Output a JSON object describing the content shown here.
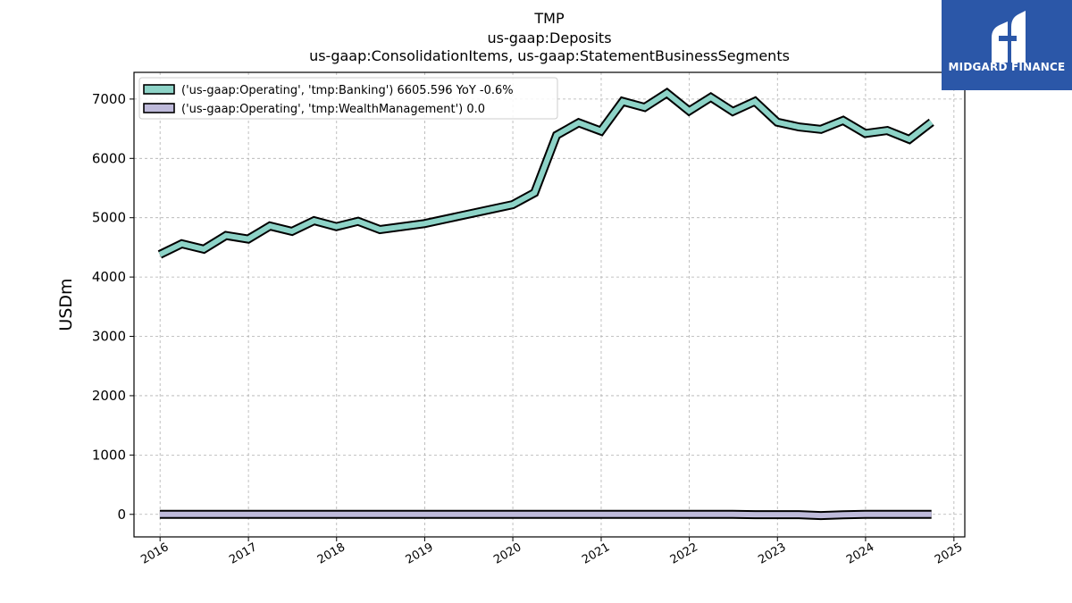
{
  "brand": {
    "name": "MIDGARD FINANCE",
    "bg_color": "#2b57a8",
    "icon": "midgard-logo-icon"
  },
  "chart_data": {
    "type": "line",
    "title_lines": [
      "TMP",
      "us-gaap:Deposits",
      "us-gaap:ConsolidationItems, us-gaap:StatementBusinessSegments"
    ],
    "xlabel": "",
    "ylabel": "USDm",
    "xlim": [
      "2015-09-15",
      "2025-02-15"
    ],
    "ylim": [
      -380,
      7450
    ],
    "yticks": [
      0,
      1000,
      2000,
      3000,
      4000,
      5000,
      6000,
      7000
    ],
    "ytick_labels": [
      "0",
      "1000",
      "2000",
      "3000",
      "4000",
      "5000",
      "6000",
      "7000"
    ],
    "xticks": [
      "2016-01-01",
      "2017-01-01",
      "2018-01-01",
      "2019-01-01",
      "2020-01-01",
      "2021-01-01",
      "2022-01-01",
      "2023-01-01",
      "2024-01-01",
      "2025-01-01"
    ],
    "xtick_labels": [
      "2016",
      "2017",
      "2018",
      "2019",
      "2020",
      "2021",
      "2022",
      "2023",
      "2024",
      "2025"
    ],
    "grid": true,
    "legend_position": "top-left",
    "series": [
      {
        "name": "('us-gaap:Operating', 'tmp:Banking') 6605.596 YoY -0.6%",
        "color": "#8dd3c7",
        "x": [
          "2015-12-31",
          "2016-03-31",
          "2016-06-30",
          "2016-09-30",
          "2016-12-31",
          "2017-03-31",
          "2017-06-30",
          "2017-09-30",
          "2017-12-31",
          "2018-03-31",
          "2018-06-30",
          "2018-12-31",
          "2019-12-31",
          "2020-03-31",
          "2020-06-30",
          "2020-09-30",
          "2020-12-31",
          "2021-03-31",
          "2021-06-30",
          "2021-09-30",
          "2021-12-31",
          "2022-03-31",
          "2022-06-30",
          "2022-09-30",
          "2022-12-31",
          "2023-03-31",
          "2023-06-30",
          "2023-09-30",
          "2023-12-31",
          "2024-03-31",
          "2024-06-30",
          "2024-09-30"
        ],
        "values": [
          4380,
          4560,
          4470,
          4700,
          4640,
          4860,
          4770,
          4950,
          4850,
          4940,
          4800,
          4900,
          5220,
          5420,
          6390,
          6600,
          6460,
          6960,
          6860,
          7100,
          6800,
          7030,
          6790,
          6960,
          6610,
          6530,
          6490,
          6640,
          6420,
          6470,
          6320,
          6610
        ]
      },
      {
        "name": "('us-gaap:Operating', 'tmp:WealthManagement') 0.0",
        "color": "#bebada",
        "x": [
          "2015-12-31",
          "2016-12-31",
          "2017-12-31",
          "2018-12-31",
          "2019-12-31",
          "2020-12-31",
          "2021-12-31",
          "2022-06-30",
          "2022-09-30",
          "2022-12-31",
          "2023-03-31",
          "2023-06-30",
          "2023-09-30",
          "2023-12-31",
          "2024-03-31",
          "2024-06-30",
          "2024-09-30"
        ],
        "values": [
          0,
          0,
          0,
          0,
          0,
          0,
          0,
          0,
          -5,
          -5,
          -5,
          -20,
          -8,
          0,
          0,
          0,
          0
        ]
      }
    ]
  }
}
